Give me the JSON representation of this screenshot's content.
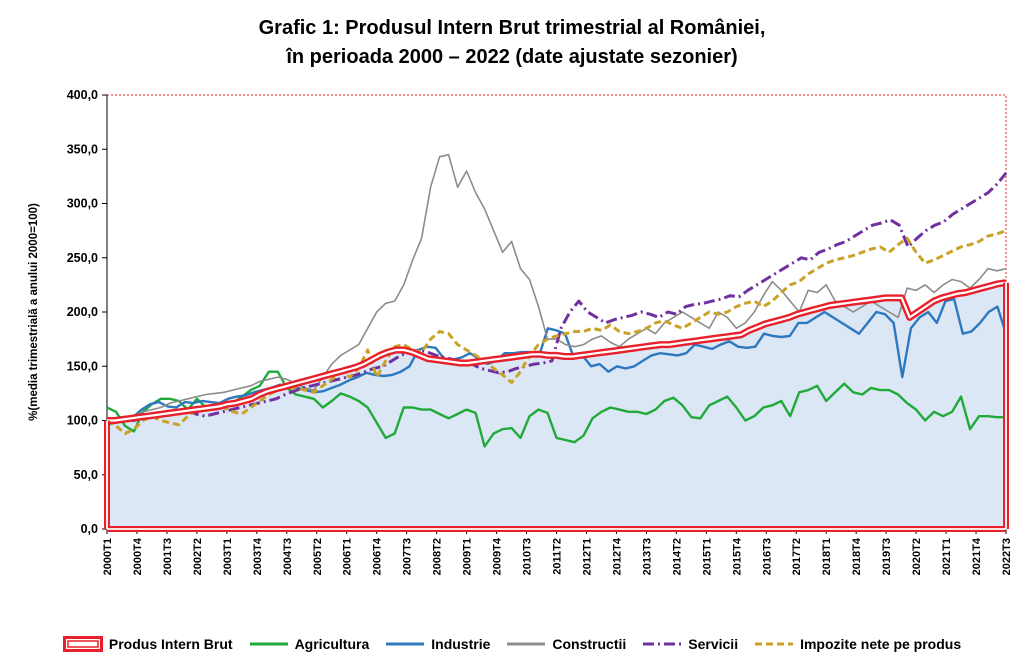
{
  "chart_data": {
    "type": "line",
    "title_line1": "Grafic 1: Produsul Intern Brut trimestrial al României,",
    "title_line2": "în perioada 2000 – 2022 (date ajustate sezonier)",
    "ylabel": "%(media trimestrială a anului 2000=100)",
    "xlabel": "",
    "ylim": [
      0,
      400
    ],
    "yticks": [
      "0,0",
      "50,0",
      "100,0",
      "150,0",
      "200,0",
      "250,0",
      "300,0",
      "350,0",
      "400,0"
    ],
    "x_tick_labels": [
      "2000T1",
      "2000T4",
      "2001T3",
      "2002T2",
      "2003T1",
      "2003T4",
      "2004T3",
      "2005T2",
      "2006T1",
      "2006T4",
      "2007T3",
      "2008T2",
      "2009T1",
      "2009T4",
      "2010T3",
      "2011T2",
      "2012T1",
      "2012T4",
      "2013T3",
      "2014T2",
      "2015T1",
      "2015T4",
      "2016T3",
      "2017T2",
      "2018T1",
      "2018T4",
      "2019T3",
      "2020T2",
      "2021T1",
      "2021T4",
      "2022T3"
    ],
    "grid": false,
    "legend_position": "bottom",
    "series_style": {
      "Produs Intern Brut": {
        "color": "#e8202a",
        "fill": "#dbe7f5",
        "style": "band"
      },
      "Agricultura": {
        "color": "#1faa3a",
        "style": "solid"
      },
      "Industrie": {
        "color": "#2e78c0",
        "style": "solid"
      },
      "Constructii": {
        "color": "#8c8c8c",
        "style": "solid"
      },
      "Servicii": {
        "color": "#7030a0",
        "style": "dashdot"
      },
      "Impozite nete pe produs": {
        "color": "#c9a227",
        "style": "dashed"
      }
    },
    "series": [
      {
        "name": "Produs Intern Brut",
        "values": [
          100,
          100,
          101,
          102,
          103,
          104,
          105,
          106,
          107,
          108,
          109,
          110,
          111,
          112,
          113,
          115,
          116,
          118,
          120,
          124,
          127,
          129,
          131,
          133,
          135,
          137,
          139,
          141,
          143,
          145,
          147,
          149,
          152,
          156,
          160,
          163,
          165,
          165,
          163,
          160,
          157,
          156,
          155,
          154,
          153,
          153,
          154,
          155,
          156,
          157,
          158,
          159,
          160,
          161,
          161,
          160,
          160,
          159,
          159,
          160,
          161,
          162,
          163,
          164,
          165,
          166,
          167,
          168,
          169,
          170,
          170,
          171,
          172,
          173,
          174,
          175,
          176,
          177,
          178,
          179,
          183,
          186,
          189,
          191,
          193,
          195,
          198,
          200,
          202,
          204,
          206,
          207,
          208,
          209,
          210,
          211,
          212,
          213,
          213,
          213,
          195,
          200,
          205,
          210,
          213,
          215,
          217,
          218,
          220,
          222,
          224,
          226,
          227
        ]
      },
      {
        "name": "Agricultura",
        "values": [
          112,
          108,
          95,
          90,
          108,
          115,
          120,
          120,
          118,
          110,
          120,
          112,
          110,
          112,
          116,
          122,
          128,
          132,
          145,
          145,
          130,
          124,
          122,
          120,
          112,
          118,
          125,
          122,
          118,
          112,
          98,
          84,
          88,
          112,
          112,
          110,
          110,
          106,
          102,
          106,
          110,
          107,
          76,
          88,
          92,
          93,
          84,
          104,
          110,
          107,
          84,
          82,
          80,
          86,
          102,
          108,
          112,
          110,
          108,
          108,
          106,
          110,
          118,
          121,
          114,
          103,
          102,
          114,
          118,
          122,
          112,
          100,
          104,
          112,
          114,
          118,
          104,
          126,
          128,
          132,
          118,
          126,
          134,
          126,
          124,
          130,
          128,
          128,
          124,
          116,
          110,
          100,
          108,
          104,
          108,
          122,
          92,
          104,
          104,
          103,
          103
        ]
      },
      {
        "name": "Industrie",
        "values": [
          96,
          98,
          100,
          103,
          110,
          115,
          117,
          113,
          112,
          117,
          116,
          118,
          117,
          116,
          120,
          122,
          123,
          126,
          128,
          130,
          133,
          132,
          130,
          128,
          126,
          127,
          130,
          133,
          137,
          140,
          144,
          142,
          141,
          142,
          145,
          150,
          165,
          168,
          167,
          157,
          156,
          158,
          162,
          157,
          152,
          155,
          162,
          162,
          163,
          163,
          160,
          185,
          183,
          180,
          158,
          160,
          150,
          152,
          145,
          150,
          148,
          150,
          155,
          160,
          162,
          161,
          160,
          162,
          170,
          168,
          166,
          170,
          173,
          168,
          167,
          168,
          180,
          178,
          177,
          178,
          190,
          190,
          195,
          200,
          195,
          190,
          185,
          180,
          190,
          200,
          198,
          190,
          140,
          185,
          195,
          200,
          190,
          210,
          212,
          180,
          182,
          190,
          200,
          205,
          180
        ]
      },
      {
        "name": "Constructii",
        "values": [
          98,
          100,
          102,
          104,
          108,
          110,
          112,
          116,
          118,
          120,
          122,
          124,
          125,
          126,
          128,
          130,
          132,
          136,
          138,
          140,
          138,
          134,
          130,
          128,
          140,
          152,
          160,
          165,
          170,
          185,
          200,
          208,
          210,
          225,
          248,
          268,
          315,
          343,
          345,
          315,
          330,
          310,
          295,
          275,
          255,
          265,
          240,
          230,
          205,
          175,
          175,
          170,
          168,
          170,
          175,
          178,
          172,
          168,
          175,
          180,
          185,
          180,
          190,
          195,
          200,
          195,
          190,
          185,
          200,
          195,
          185,
          190,
          200,
          215,
          228,
          220,
          210,
          200,
          220,
          218,
          225,
          210,
          205,
          200,
          205,
          210,
          205,
          200,
          195,
          222,
          220,
          225,
          218,
          225,
          230,
          228,
          222,
          230,
          240,
          238,
          240
        ]
      },
      {
        "name": "Servicii",
        "values": [
          97,
          99,
          101,
          100,
          102,
          104,
          106,
          105,
          108,
          110,
          106,
          104,
          106,
          108,
          110,
          112,
          114,
          116,
          118,
          120,
          124,
          127,
          130,
          132,
          134,
          136,
          138,
          140,
          142,
          145,
          148,
          150,
          155,
          160,
          163,
          165,
          163,
          160,
          158,
          156,
          155,
          152,
          148,
          146,
          144,
          145,
          148,
          150,
          152,
          153,
          155,
          185,
          200,
          210,
          200,
          195,
          190,
          193,
          195,
          197,
          200,
          198,
          195,
          200,
          198,
          205,
          207,
          208,
          210,
          212,
          215,
          214,
          220,
          225,
          230,
          235,
          240,
          245,
          250,
          248,
          255,
          258,
          262,
          265,
          270,
          275,
          280,
          282,
          285,
          280,
          260,
          268,
          275,
          280,
          283,
          290,
          295,
          300,
          305,
          310,
          318,
          328
        ]
      },
      {
        "name": "Impozite nete pe produs",
        "values": [
          100,
          95,
          88,
          92,
          100,
          104,
          100,
          98,
          96,
          104,
          110,
          112,
          114,
          112,
          108,
          106,
          112,
          118,
          124,
          128,
          130,
          130,
          128,
          126,
          132,
          138,
          145,
          140,
          148,
          165,
          140,
          155,
          168,
          170,
          165,
          163,
          175,
          182,
          180,
          170,
          165,
          160,
          155,
          148,
          142,
          135,
          145,
          160,
          170,
          175,
          178,
          180,
          182,
          182,
          185,
          183,
          188,
          182,
          180,
          182,
          185,
          190,
          192,
          188,
          185,
          190,
          195,
          200,
          198,
          200,
          205,
          208,
          210,
          205,
          210,
          218,
          225,
          228,
          235,
          240,
          245,
          248,
          250,
          252,
          255,
          258,
          260,
          255,
          262,
          268,
          255,
          245,
          248,
          252,
          256,
          260,
          262,
          265,
          270,
          272,
          275
        ]
      }
    ]
  }
}
